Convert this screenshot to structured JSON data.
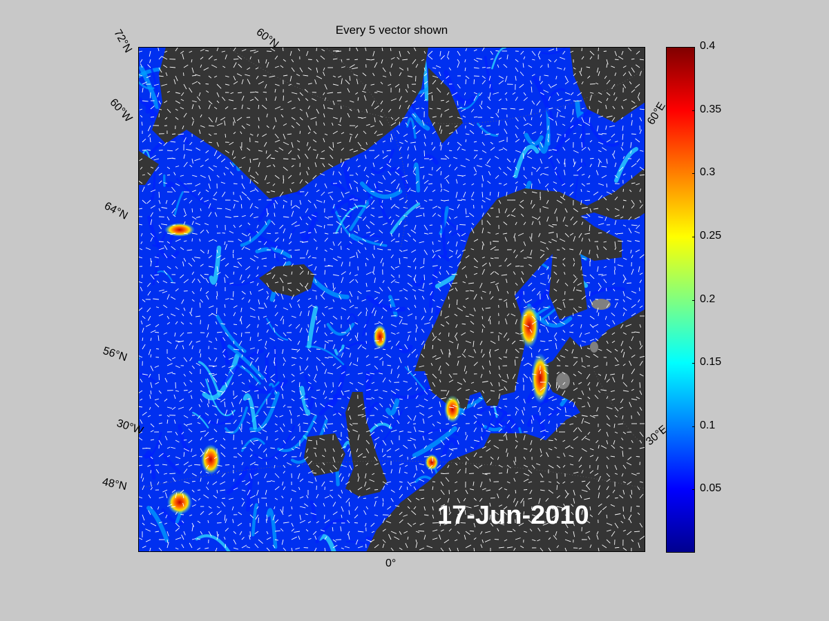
{
  "title": "Every 5 vector shown",
  "date": "17-Jun-2010",
  "map": {
    "ocean_palette": [
      "#0000b8",
      "#0020ff",
      "#00a0ff",
      "#30e0ff",
      "#ffe000",
      "#ff6000",
      "#c00000"
    ],
    "land_color": "#353535",
    "lake_color": "#808080",
    "vector_color": "#ffffff"
  },
  "graticule_labels": {
    "lat_left": [
      "72°N",
      "64°N",
      "56°N",
      "48°N"
    ],
    "top": [
      "60°N"
    ],
    "lon_left": [
      "60°W",
      "30°W"
    ],
    "lon_right": [
      "60°E",
      "30°E"
    ],
    "lon_bottom": [
      "0°"
    ]
  },
  "colorbar": {
    "min": 0,
    "max": 0.4,
    "ticks": [
      "0.4",
      "0.35",
      "0.3",
      "0.25",
      "0.2",
      "0.15",
      "0.1",
      "0.05"
    ],
    "tick_values": [
      0.4,
      0.35,
      0.3,
      0.25,
      0.2,
      0.15,
      0.1,
      0.05
    ],
    "colormap": [
      "#00008f",
      "#0000ff",
      "#0080ff",
      "#00ffff",
      "#80ff80",
      "#ffff00",
      "#ff8000",
      "#ff0000",
      "#800000"
    ]
  }
}
